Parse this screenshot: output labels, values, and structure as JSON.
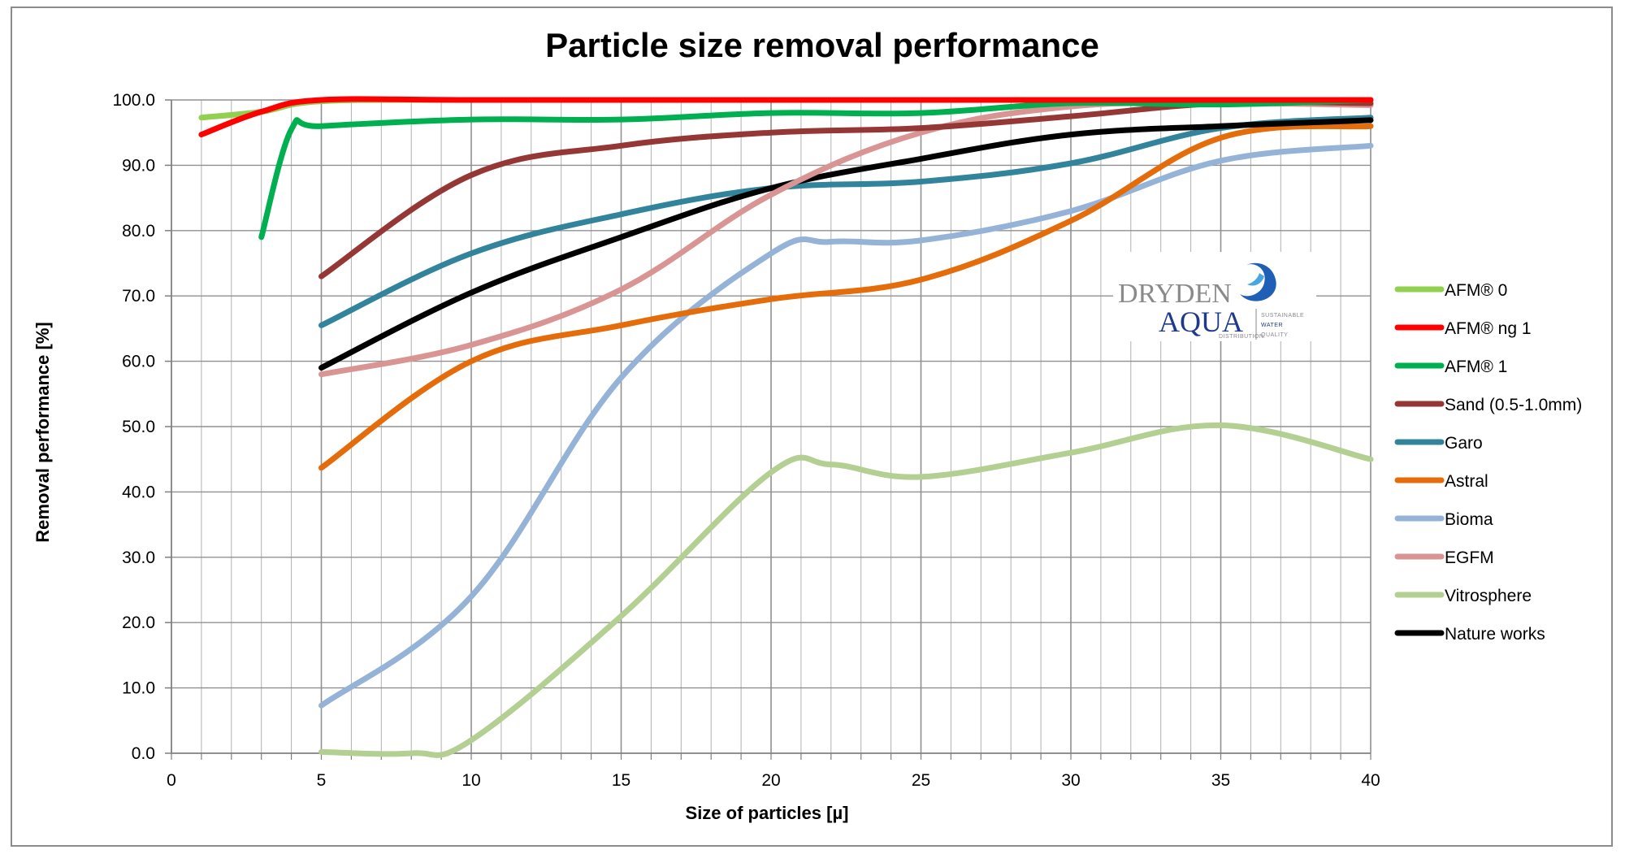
{
  "colors": {
    "grid": "#b0b0b0",
    "axis": "#7f7f7f",
    "logo_grey": "#8a8a8a",
    "logo_blue": "#1f3a8a"
  },
  "logo": {
    "brand_line1": "DRYDEN",
    "brand_line2": "AQUA",
    "sub": "DISTRIBUTION",
    "tag1": "SUSTAINABLE",
    "tag2": "WATER",
    "tag3": "QUALITY"
  },
  "chart_data": {
    "type": "line",
    "title": "Particle size removal performance",
    "xlabel": "Size of particles [µ]",
    "ylabel": "Removal performance [%]",
    "xlim": [
      0,
      40
    ],
    "ylim": [
      0,
      100
    ],
    "xticks": [
      0,
      5,
      10,
      15,
      20,
      25,
      30,
      35,
      40
    ],
    "yticks": [
      0,
      10,
      20,
      30,
      40,
      50,
      60,
      70,
      80,
      90,
      100
    ],
    "ytick_labels": [
      "0.0",
      "10.0",
      "20.0",
      "30.0",
      "40.0",
      "50.0",
      "60.0",
      "70.0",
      "80.0",
      "90.0",
      "100.0"
    ],
    "xtick_labels": [
      "0",
      "5",
      "10",
      "15",
      "20",
      "25",
      "30",
      "35",
      "40"
    ],
    "grid": true,
    "legend_position": "right",
    "series": [
      {
        "name": "AFM® 0",
        "color": "#92d050",
        "points": [
          [
            1,
            97.3
          ],
          [
            3,
            98.2
          ],
          [
            5,
            99.8
          ],
          [
            10,
            100
          ],
          [
            20,
            100
          ],
          [
            30,
            100
          ],
          [
            40,
            100
          ]
        ]
      },
      {
        "name": "AFM® ng 1",
        "color": "#ff0000",
        "points": [
          [
            1,
            94.7
          ],
          [
            3,
            98.2
          ],
          [
            5,
            100
          ],
          [
            10,
            100
          ],
          [
            20,
            100
          ],
          [
            30,
            100
          ],
          [
            40,
            100
          ]
        ]
      },
      {
        "name": "AFM® 1",
        "color": "#00b050",
        "points": [
          [
            3,
            79
          ],
          [
            4,
            95.5
          ],
          [
            5,
            96
          ],
          [
            10,
            97
          ],
          [
            15,
            97
          ],
          [
            20,
            98
          ],
          [
            25,
            98
          ],
          [
            30,
            99.5
          ],
          [
            35,
            99.3
          ],
          [
            40,
            100
          ]
        ]
      },
      {
        "name": "Sand (0.5-1.0mm)",
        "color": "#953735",
        "points": [
          [
            5,
            73
          ],
          [
            10,
            88.5
          ],
          [
            15,
            93
          ],
          [
            20,
            95
          ],
          [
            25,
            95.7
          ],
          [
            30,
            97.5
          ],
          [
            35,
            99.5
          ],
          [
            40,
            99.5
          ]
        ]
      },
      {
        "name": "Garo",
        "color": "#31849b",
        "points": [
          [
            5,
            65.5
          ],
          [
            10,
            76.5
          ],
          [
            15,
            82.5
          ],
          [
            20,
            86.5
          ],
          [
            25,
            87.5
          ],
          [
            30,
            90.3
          ],
          [
            35,
            95.7
          ],
          [
            40,
            97.3
          ]
        ]
      },
      {
        "name": "Astral",
        "color": "#e46c0a",
        "points": [
          [
            5,
            43.7
          ],
          [
            10,
            60
          ],
          [
            15,
            65.5
          ],
          [
            20,
            69.5
          ],
          [
            25,
            72.5
          ],
          [
            30,
            81.5
          ],
          [
            35,
            94.2
          ],
          [
            40,
            96
          ]
        ]
      },
      {
        "name": "Bioma",
        "color": "#95b3d7",
        "points": [
          [
            5,
            7.3
          ],
          [
            10,
            24
          ],
          [
            15,
            57.5
          ],
          [
            20,
            76.5
          ],
          [
            22,
            78.3
          ],
          [
            25,
            78.5
          ],
          [
            30,
            83
          ],
          [
            35,
            90.7
          ],
          [
            40,
            93
          ]
        ]
      },
      {
        "name": "EGFM",
        "color": "#d99594",
        "points": [
          [
            5,
            58
          ],
          [
            10,
            62.5
          ],
          [
            15,
            71
          ],
          [
            20,
            85.5
          ],
          [
            25,
            95
          ],
          [
            30,
            99
          ],
          [
            35,
            99.5
          ],
          [
            40,
            99.2
          ]
        ]
      },
      {
        "name": "Vitrosphere",
        "color": "#b3cf92",
        "points": [
          [
            5,
            0.2
          ],
          [
            8,
            0
          ],
          [
            10,
            2
          ],
          [
            15,
            21
          ],
          [
            20,
            43
          ],
          [
            22,
            44.2
          ],
          [
            25,
            42.3
          ],
          [
            30,
            46
          ],
          [
            35,
            50.2
          ],
          [
            40,
            45
          ]
        ]
      },
      {
        "name": "Nature works",
        "color": "#000000",
        "points": [
          [
            5,
            59
          ],
          [
            10,
            70.5
          ],
          [
            15,
            79
          ],
          [
            20,
            86.5
          ],
          [
            25,
            91
          ],
          [
            30,
            94.7
          ],
          [
            35,
            96
          ],
          [
            40,
            96.9
          ]
        ]
      }
    ]
  }
}
